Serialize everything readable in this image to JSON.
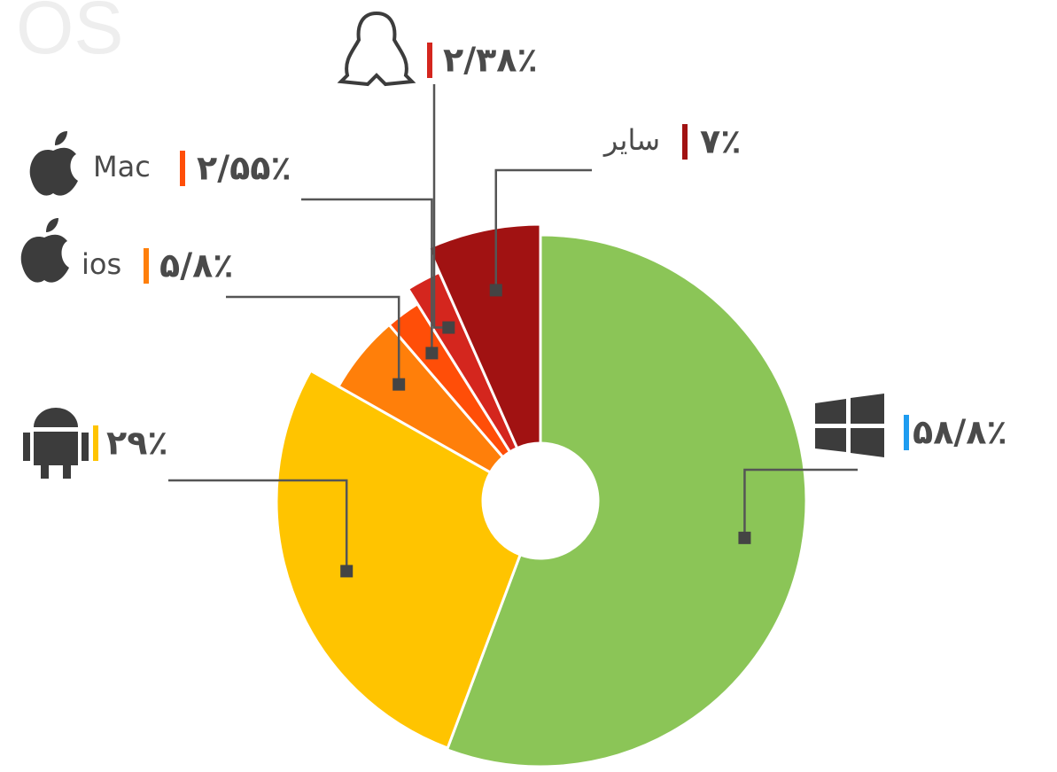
{
  "chart_data": {
    "type": "pie",
    "title": "OS",
    "categories": [
      null,
      null,
      "ios",
      "Mac",
      null,
      "سایر"
    ],
    "values": [
      58.8,
      29,
      5.8,
      2.55,
      2.38,
      7
    ],
    "value_labels": [
      "۵۸/۸٪",
      "۲۹٪",
      "۵/۸٪",
      "۲/۵۵٪",
      "۲/۳۸٪",
      "۷٪"
    ],
    "colors": [
      "#8bc557",
      "#ffc400",
      "#ff7f0a",
      "#ff4e08",
      "#d4261e",
      "#a11212"
    ]
  }
}
